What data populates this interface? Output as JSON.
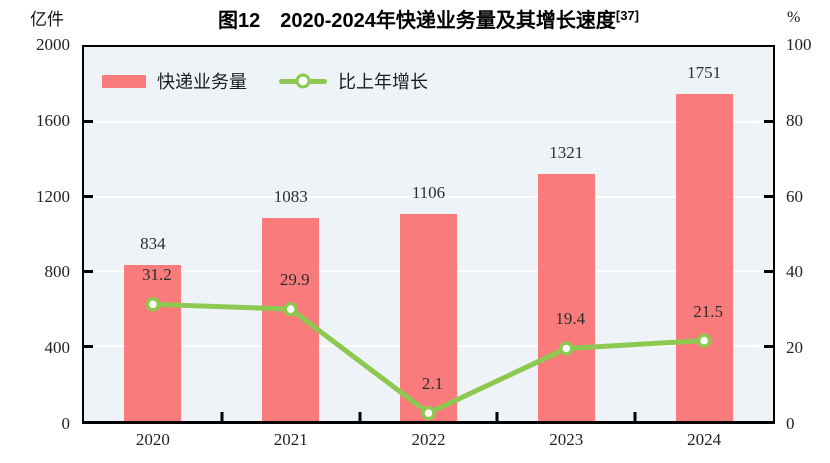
{
  "chart_data": {
    "type": "bar+line",
    "title": "图12　2020-2024年快递业务量及其增长速度",
    "title_superscript": "[37]",
    "left_axis": {
      "unit": "亿件",
      "min": 0,
      "max": 2000,
      "ticks": [
        0,
        400,
        800,
        1200,
        1600,
        2000
      ]
    },
    "right_axis": {
      "unit": "%",
      "min": 0,
      "max": 100,
      "ticks": [
        0,
        20,
        40,
        60,
        80,
        100
      ]
    },
    "categories": [
      "2020",
      "2021",
      "2022",
      "2023",
      "2024"
    ],
    "series": [
      {
        "name": "快递业务量",
        "type": "bar",
        "axis": "left",
        "color": "#FA7B7B",
        "values": [
          834,
          1083,
          1106,
          1321,
          1751
        ]
      },
      {
        "name": "比上年增长",
        "type": "line",
        "axis": "right",
        "color": "#8DC850",
        "marker": "circle-white-fill",
        "values": [
          31.2,
          29.9,
          2.1,
          19.4,
          21.5
        ]
      }
    ],
    "grid": true,
    "grid_color": "#FFFFFF",
    "plot_background": "#EDF3F7",
    "legend_position": "top-left-inside"
  }
}
